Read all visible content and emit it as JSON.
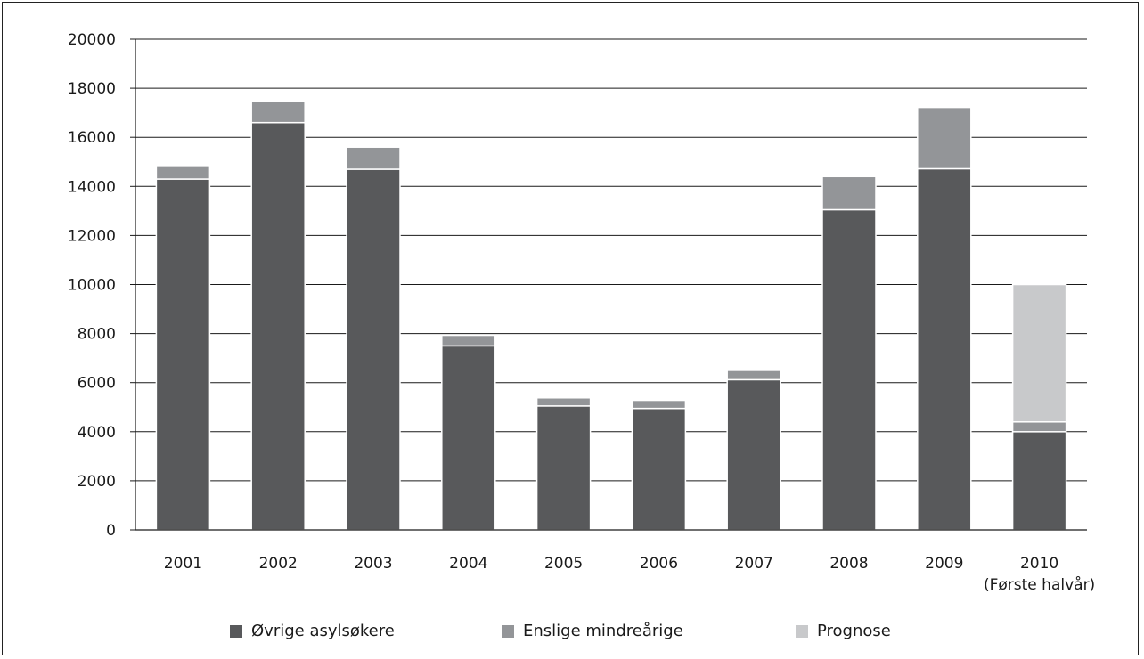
{
  "chart_data": {
    "type": "bar",
    "stacked": true,
    "categories": [
      "2001",
      "2002",
      "2003",
      "2004",
      "2005",
      "2006",
      "2007",
      "2008",
      "2009",
      "2010"
    ],
    "category_sublabels": [
      "",
      "",
      "",
      "",
      "",
      "",
      "",
      "",
      "",
      "(Første halvår)"
    ],
    "series": [
      {
        "name": "Øvrige asylsøkere",
        "color": "#58595b",
        "values": [
          14300,
          16600,
          14700,
          7500,
          5050,
          4950,
          6120,
          13050,
          14720,
          4000
        ]
      },
      {
        "name": "Enslige mindreårige",
        "color": "#939598",
        "values": [
          550,
          850,
          900,
          430,
          330,
          330,
          380,
          1350,
          2500,
          400
        ]
      },
      {
        "name": "Prognose",
        "color": "#c8c9cb",
        "values": [
          0,
          0,
          0,
          0,
          0,
          0,
          0,
          0,
          0,
          5600
        ]
      }
    ],
    "ylim": [
      0,
      20000
    ],
    "yticks": [
      0,
      2000,
      4000,
      6000,
      8000,
      10000,
      12000,
      14000,
      16000,
      18000,
      20000
    ],
    "grid": true,
    "legend_position": "bottom"
  }
}
